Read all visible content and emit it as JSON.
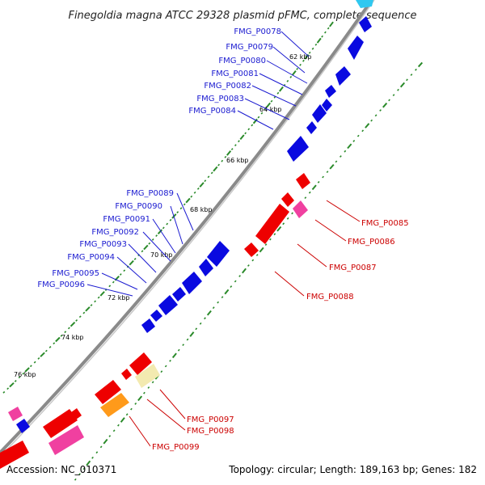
{
  "title": "Finegoldia magna ATCC 29328 plasmid pFMC, complete sequence",
  "footer": {
    "accession": "Accession: NC_010371",
    "summary": "Topology: circular; Length: 189,163 bp; Genes: 182"
  },
  "colors": {
    "forward": "#0a0ae0",
    "reverse": "#ee0000",
    "pink": "#f040a0",
    "orange": "#ff9a1a",
    "pale_yellow": "#f3eab0",
    "cyan": "#30c8f0",
    "backbone": "#8a8a8a",
    "tick": "#2a8a2a",
    "label_forward": "#1a1ad0",
    "label_reverse": "#cc0000"
  },
  "kbp_ticks": [
    "62 kbp",
    "64 kbp",
    "66 kbp",
    "68 kbp",
    "70 kbp",
    "72 kbp",
    "74 kbp",
    "76 kbp"
  ],
  "forward_genes": [
    "FMG_P0078",
    "FMG_P0079",
    "FMG_P0080",
    "FMG_P0081",
    "FMG_P0082",
    "FMG_P0083",
    "FMG_P0084",
    "FMG_P0089",
    "FMG_P0090",
    "FMG_P0091",
    "FMG_P0092",
    "FMG_P0093",
    "FMG_P0094",
    "FMG_P0095",
    "FMG_P0096"
  ],
  "reverse_genes": [
    "FMG_P0085",
    "FMG_P0086",
    "FMG_P0087",
    "FMG_P0088",
    "FMG_P0097",
    "FMG_P0098",
    "FMG_P0099"
  ]
}
